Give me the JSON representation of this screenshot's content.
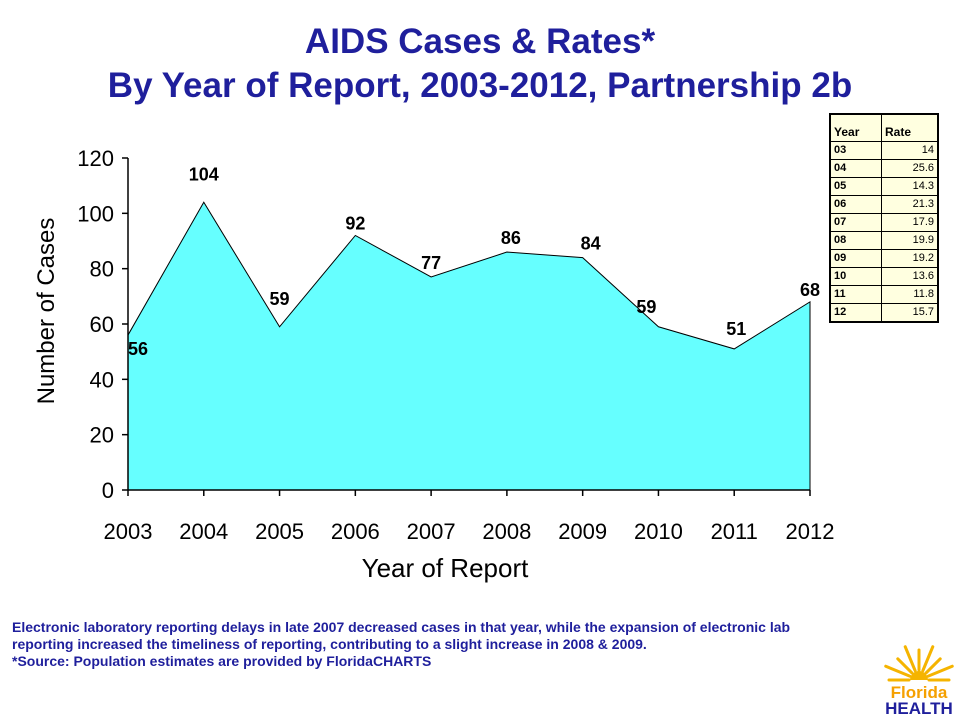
{
  "title_line1": "AIDS Cases & Rates*",
  "title_line2": "By Year of Report, 2003-2012, Partnership 2b",
  "chart_data": {
    "type": "area",
    "categories": [
      "2003",
      "2004",
      "2005",
      "2006",
      "2007",
      "2008",
      "2009",
      "2010",
      "2011",
      "2012"
    ],
    "values": [
      56,
      104,
      59,
      92,
      77,
      86,
      84,
      59,
      51,
      68
    ],
    "xlabel": "Year of Report",
    "ylabel": "Number of Cases",
    "ylim": [
      0,
      120
    ],
    "yticks": [
      0,
      20,
      40,
      60,
      80,
      100,
      120
    ],
    "grid": false,
    "fill_color": "#66ffff",
    "line_color": "#000000",
    "data_labels": true
  },
  "rate_table": {
    "headers": [
      "Year",
      "Rate"
    ],
    "rows": [
      {
        "year": "03",
        "rate": "14"
      },
      {
        "year": "04",
        "rate": "25.6"
      },
      {
        "year": "05",
        "rate": "14.3"
      },
      {
        "year": "06",
        "rate": "21.3"
      },
      {
        "year": "07",
        "rate": "17.9"
      },
      {
        "year": "08",
        "rate": "19.9"
      },
      {
        "year": "09",
        "rate": "19.2"
      },
      {
        "year": "10",
        "rate": "13.6"
      },
      {
        "year": "11",
        "rate": "11.8"
      },
      {
        "year": "12",
        "rate": "15.7"
      }
    ]
  },
  "footnote": {
    "line1": "Electronic laboratory reporting delays in late 2007 decreased cases in that year, while the expansion of electronic lab reporting increased the timeliness of reporting, contributing to a slight increase in 2008 & 2009.",
    "line2": "*Source: Population estimates are provided by FloridaCHARTS"
  },
  "logo": {
    "word1": "Florida",
    "word2": "HEALTH",
    "sun_color": "#f5b400",
    "word1_color": "#f5a000",
    "word2_color": "#1f1f9c"
  }
}
